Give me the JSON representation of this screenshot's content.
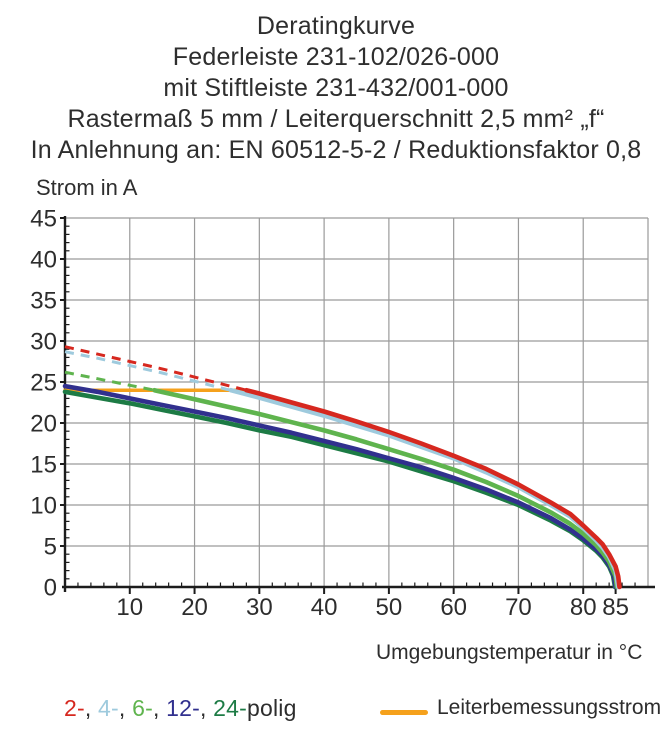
{
  "title": {
    "lines": [
      "Deratingkurve",
      "Federleiste 231-102/026-000",
      "mit Stiftleiste 231-432/001-000",
      "Rastermaß 5 mm / Leiterquerschnitt 2,5 mm² „f“",
      "In Anlehnung an: EN 60512-5-2 / Reduktionsfaktor 0,8"
    ]
  },
  "axes": {
    "y": {
      "label": "Strom in A",
      "min": 0,
      "max": 45,
      "major_step": 5,
      "minor_step": 1,
      "ticks": [
        0,
        5,
        10,
        15,
        20,
        25,
        30,
        35,
        40,
        45
      ]
    },
    "x": {
      "label": "Umgebungstemperatur in °C",
      "min": 0,
      "max": 90,
      "major_step": 10,
      "minor_step": 2,
      "ticks": [
        10,
        20,
        30,
        40,
        50,
        60,
        70,
        80,
        85
      ]
    }
  },
  "chart_data": {
    "type": "line",
    "title": "Deratingkurve",
    "xlabel": "Umgebungstemperatur in °C",
    "ylabel": "Strom in A",
    "xlim": [
      0,
      90
    ],
    "ylim": [
      0,
      45
    ],
    "grid": true,
    "note": "dashed_points = section above Leiterbemessungsstrom cap (drawn dashed); values in A vs °C",
    "series": [
      {
        "name": "2-polig",
        "color": "#d6281f",
        "dashed_points": [
          [
            0,
            29.3
          ],
          [
            5,
            28.4
          ],
          [
            10,
            27.5
          ],
          [
            15,
            26.6
          ],
          [
            20,
            25.6
          ],
          [
            25,
            24.6
          ],
          [
            28,
            24.0
          ]
        ],
        "solid_points": [
          [
            28,
            24.0
          ],
          [
            30,
            23.6
          ],
          [
            35,
            22.5
          ],
          [
            40,
            21.4
          ],
          [
            45,
            20.2
          ],
          [
            50,
            18.9
          ],
          [
            55,
            17.5
          ],
          [
            60,
            16.0
          ],
          [
            65,
            14.4
          ],
          [
            70,
            12.5
          ],
          [
            75,
            10.3
          ],
          [
            78,
            8.9
          ],
          [
            80,
            7.5
          ],
          [
            82,
            6.0
          ],
          [
            83,
            5.2
          ],
          [
            84,
            4.0
          ],
          [
            85,
            2.5
          ],
          [
            85.4,
            1.3
          ],
          [
            85.6,
            0
          ]
        ]
      },
      {
        "name": "4-polig",
        "color": "#9ecadd",
        "dashed_points": [
          [
            0,
            28.7
          ],
          [
            5,
            27.9
          ],
          [
            10,
            27.0
          ],
          [
            15,
            26.1
          ],
          [
            20,
            25.1
          ],
          [
            25,
            24.1
          ],
          [
            25.6,
            24.0
          ]
        ],
        "solid_points": [
          [
            25.6,
            24.0
          ],
          [
            30,
            23.1
          ],
          [
            35,
            22.0
          ],
          [
            40,
            20.9
          ],
          [
            45,
            19.7
          ],
          [
            50,
            18.5
          ],
          [
            55,
            17.1
          ],
          [
            60,
            15.7
          ],
          [
            65,
            14.0
          ],
          [
            70,
            12.2
          ],
          [
            75,
            10.0
          ],
          [
            78,
            8.6
          ],
          [
            80,
            7.2
          ],
          [
            82,
            5.7
          ],
          [
            83,
            4.8
          ],
          [
            84,
            3.7
          ],
          [
            85,
            2.0
          ],
          [
            85.4,
            0
          ]
        ]
      },
      {
        "name": "6-polig",
        "color": "#5fb44e",
        "dashed_points": [
          [
            0,
            26.2
          ],
          [
            5,
            25.4
          ],
          [
            10,
            24.6
          ],
          [
            13.8,
            24.0
          ]
        ],
        "solid_points": [
          [
            13.8,
            24.0
          ],
          [
            20,
            22.9
          ],
          [
            25,
            22.0
          ],
          [
            30,
            21.1
          ],
          [
            35,
            20.1
          ],
          [
            40,
            19.1
          ],
          [
            45,
            18.0
          ],
          [
            50,
            16.8
          ],
          [
            55,
            15.6
          ],
          [
            60,
            14.3
          ],
          [
            65,
            12.8
          ],
          [
            70,
            11.1
          ],
          [
            75,
            9.1
          ],
          [
            78,
            7.7
          ],
          [
            80,
            6.5
          ],
          [
            82,
            5.1
          ],
          [
            83,
            4.2
          ],
          [
            84,
            3.1
          ],
          [
            85,
            1.3
          ],
          [
            85.2,
            0
          ]
        ]
      },
      {
        "name": "12-polig",
        "color": "#31308e",
        "solid_points": [
          [
            0,
            24.5
          ],
          [
            5,
            23.8
          ],
          [
            10,
            23.0
          ],
          [
            15,
            22.2
          ],
          [
            20,
            21.4
          ],
          [
            25,
            20.6
          ],
          [
            30,
            19.7
          ],
          [
            35,
            18.8
          ],
          [
            40,
            17.8
          ],
          [
            45,
            16.8
          ],
          [
            50,
            15.7
          ],
          [
            55,
            14.6
          ],
          [
            60,
            13.3
          ],
          [
            65,
            11.9
          ],
          [
            70,
            10.3
          ],
          [
            75,
            8.4
          ],
          [
            78,
            7.0
          ],
          [
            80,
            5.9
          ],
          [
            82,
            4.6
          ],
          [
            83,
            3.8
          ],
          [
            84,
            2.7
          ],
          [
            84.7,
            1.5
          ],
          [
            85,
            0
          ]
        ]
      },
      {
        "name": "24-polig",
        "color": "#1d7b45",
        "solid_points": [
          [
            0,
            23.8
          ],
          [
            5,
            23.1
          ],
          [
            10,
            22.4
          ],
          [
            15,
            21.6
          ],
          [
            20,
            20.8
          ],
          [
            25,
            20.0
          ],
          [
            30,
            19.1
          ],
          [
            35,
            18.3
          ],
          [
            40,
            17.3
          ],
          [
            45,
            16.3
          ],
          [
            50,
            15.3
          ],
          [
            55,
            14.1
          ],
          [
            60,
            12.9
          ],
          [
            65,
            11.5
          ],
          [
            70,
            10.0
          ],
          [
            75,
            8.1
          ],
          [
            78,
            6.8
          ],
          [
            80,
            5.7
          ],
          [
            82,
            4.4
          ],
          [
            83,
            3.6
          ],
          [
            84,
            2.5
          ],
          [
            84.6,
            1.4
          ],
          [
            84.9,
            0
          ]
        ]
      }
    ],
    "rated_line": {
      "name": "Leiterbemessungsstrom",
      "color": "#f5a11c",
      "value": 24,
      "x_range": [
        0,
        28.3
      ]
    },
    "legend_position": "bottom"
  },
  "legend": {
    "poles": [
      {
        "label": "2-",
        "color": "#d6281f"
      },
      {
        "label": "4-",
        "color": "#9ecadd"
      },
      {
        "label": "6-",
        "color": "#5fb44e"
      },
      {
        "label": "12-",
        "color": "#31308e"
      },
      {
        "label": "24-",
        "color": "#1d7b45"
      }
    ],
    "separator": ", ",
    "suffix": "polig",
    "rated_label": "Leiterbemessungsstrom",
    "rated_color": "#f5a11c"
  },
  "colors": {
    "grid": "#9a9a9a",
    "axis": "#1c1c1c",
    "text": "#2d2d2d"
  }
}
